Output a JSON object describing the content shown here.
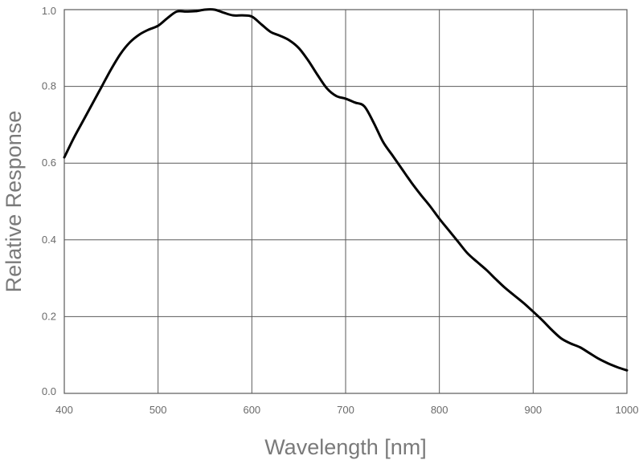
{
  "chart_data": {
    "type": "line",
    "xlabel": "Wavelength [nm]",
    "ylabel": "Relative Response",
    "xlim": [
      400,
      1000
    ],
    "ylim": [
      0.0,
      1.0
    ],
    "x_ticks": [
      400,
      500,
      600,
      700,
      800,
      900,
      1000
    ],
    "y_ticks": [
      0.0,
      0.2,
      0.4,
      0.6,
      0.8,
      1.0
    ],
    "x_tick_labels": [
      "400",
      "500",
      "600",
      "700",
      "800",
      "900",
      "1000"
    ],
    "y_tick_labels": [
      "0.0",
      "0.2",
      "0.4",
      "0.6",
      "0.8",
      "1.0"
    ],
    "grid": true,
    "line_color": "#000000",
    "grid_color": "#5a5a5a",
    "series": [
      {
        "x": [
          400,
          410,
          420,
          430,
          440,
          450,
          460,
          470,
          480,
          490,
          500,
          510,
          520,
          530,
          540,
          550,
          560,
          570,
          580,
          590,
          600,
          610,
          620,
          630,
          640,
          650,
          660,
          670,
          680,
          690,
          700,
          710,
          720,
          730,
          740,
          750,
          760,
          770,
          780,
          790,
          800,
          810,
          820,
          830,
          840,
          850,
          860,
          870,
          880,
          890,
          900,
          910,
          920,
          930,
          940,
          950,
          960,
          970,
          980,
          990,
          1000
        ],
        "y": [
          0.615,
          0.665,
          0.71,
          0.755,
          0.8,
          0.845,
          0.885,
          0.915,
          0.935,
          0.948,
          0.958,
          0.978,
          0.995,
          0.995,
          0.996,
          1.0,
          1.0,
          0.992,
          0.985,
          0.985,
          0.982,
          0.962,
          0.942,
          0.932,
          0.92,
          0.9,
          0.868,
          0.83,
          0.795,
          0.775,
          0.768,
          0.758,
          0.748,
          0.705,
          0.655,
          0.62,
          0.585,
          0.55,
          0.518,
          0.488,
          0.455,
          0.425,
          0.395,
          0.365,
          0.343,
          0.322,
          0.298,
          0.275,
          0.255,
          0.235,
          0.213,
          0.19,
          0.165,
          0.143,
          0.13,
          0.12,
          0.105,
          0.09,
          0.078,
          0.068,
          0.06
        ]
      }
    ]
  }
}
